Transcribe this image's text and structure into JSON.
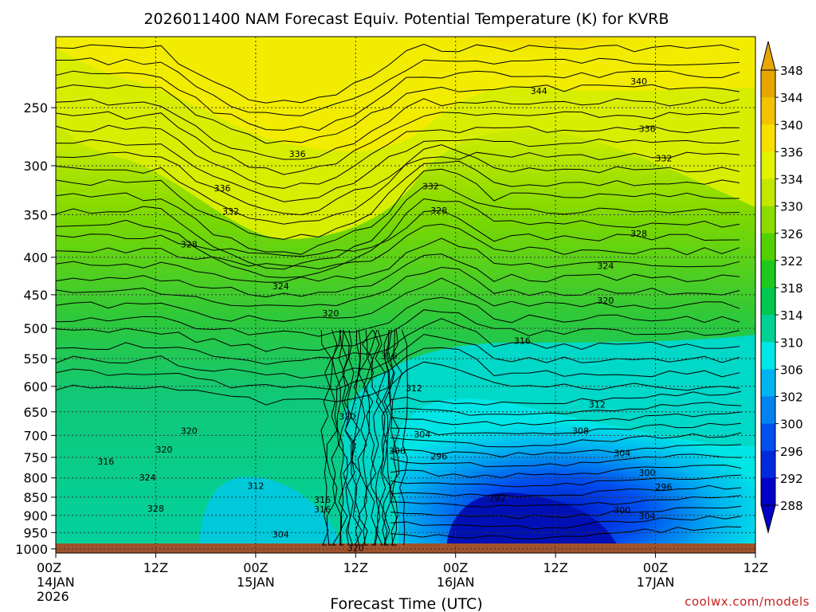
{
  "chart_data": {
    "type": "heatmap",
    "title": "2026011400 NAM Forecast Equiv. Potential Temperature (K) for KVRB",
    "xlabel": "Forecast Time (UTC)",
    "ylabel": "",
    "x_ticks": [
      {
        "label": "00Z",
        "sub": "14JAN",
        "sub2": "2026",
        "hour": 0
      },
      {
        "label": "12Z",
        "sub": "",
        "sub2": "",
        "hour": 12
      },
      {
        "label": "00Z",
        "sub": "15JAN",
        "sub2": "",
        "hour": 24
      },
      {
        "label": "12Z",
        "sub": "",
        "sub2": "",
        "hour": 36
      },
      {
        "label": "00Z",
        "sub": "16JAN",
        "sub2": "",
        "hour": 48
      },
      {
        "label": "12Z",
        "sub": "",
        "sub2": "",
        "hour": 60
      },
      {
        "label": "00Z",
        "sub": "17JAN",
        "sub2": "",
        "hour": 72
      },
      {
        "label": "12Z",
        "sub": "",
        "sub2": "",
        "hour": 84
      }
    ],
    "xlim": [
      0,
      84
    ],
    "y_ticks": [
      250,
      300,
      350,
      400,
      450,
      500,
      550,
      600,
      650,
      700,
      750,
      800,
      850,
      900,
      950,
      1000
    ],
    "ylim": [
      1013,
      200
    ],
    "colorbar": {
      "labels": [
        348,
        344,
        340,
        336,
        334,
        330,
        326,
        322,
        318,
        314,
        310,
        306,
        302,
        300,
        296,
        292,
        288
      ],
      "colors": [
        "#e8a600",
        "#f2c300",
        "#f7e000",
        "#e3f200",
        "#c2e800",
        "#8cdc00",
        "#52d000",
        "#20c81e",
        "#00c850",
        "#00d296",
        "#00e6e6",
        "#00b4f0",
        "#0082f0",
        "#0050f0",
        "#0028dc",
        "#0000c8"
      ]
    },
    "contour_labels": [
      {
        "v": "336",
        "h": 20,
        "p": 322
      },
      {
        "v": "344",
        "h": 58,
        "p": 237
      },
      {
        "v": "340",
        "h": 70,
        "p": 230
      },
      {
        "v": "336",
        "h": 71,
        "p": 267
      },
      {
        "v": "336",
        "h": 29,
        "p": 289
      },
      {
        "v": "332",
        "h": 45,
        "p": 320
      },
      {
        "v": "332",
        "h": 73,
        "p": 293
      },
      {
        "v": "328",
        "h": 46,
        "p": 345
      },
      {
        "v": "332",
        "h": 21,
        "p": 346
      },
      {
        "v": "328",
        "h": 70,
        "p": 371
      },
      {
        "v": "328",
        "h": 16,
        "p": 384
      },
      {
        "v": "324",
        "h": 66,
        "p": 411
      },
      {
        "v": "324",
        "h": 27,
        "p": 438
      },
      {
        "v": "320",
        "h": 66,
        "p": 458
      },
      {
        "v": "320",
        "h": 33,
        "p": 477
      },
      {
        "v": "316",
        "h": 56,
        "p": 520
      },
      {
        "v": "316",
        "h": 40,
        "p": 545
      },
      {
        "v": "312",
        "h": 43,
        "p": 603
      },
      {
        "v": "312",
        "h": 65,
        "p": 635
      },
      {
        "v": "320",
        "h": 35,
        "p": 659
      },
      {
        "v": "320",
        "h": 16,
        "p": 690
      },
      {
        "v": "304",
        "h": 44,
        "p": 698
      },
      {
        "v": "308",
        "h": 63,
        "p": 690
      },
      {
        "v": "320",
        "h": 13,
        "p": 732
      },
      {
        "v": "308",
        "h": 41,
        "p": 734
      },
      {
        "v": "296",
        "h": 46,
        "p": 747
      },
      {
        "v": "304",
        "h": 68,
        "p": 740
      },
      {
        "v": "316",
        "h": 6,
        "p": 760
      },
      {
        "v": "300",
        "h": 71,
        "p": 787
      },
      {
        "v": "324",
        "h": 11,
        "p": 799
      },
      {
        "v": "312",
        "h": 24,
        "p": 820
      },
      {
        "v": "296",
        "h": 73,
        "p": 823
      },
      {
        "v": "292",
        "h": 53,
        "p": 852
      },
      {
        "v": "316",
        "h": 32,
        "p": 857
      },
      {
        "v": "328",
        "h": 12,
        "p": 880
      },
      {
        "v": "316",
        "h": 32,
        "p": 883
      },
      {
        "v": "300",
        "h": 68,
        "p": 885
      },
      {
        "v": "304",
        "h": 71,
        "p": 902
      },
      {
        "v": "304",
        "h": 27,
        "p": 955
      },
      {
        "v": "320",
        "h": 36,
        "p": 997
      }
    ]
  },
  "credit": "coolwx.com/models"
}
